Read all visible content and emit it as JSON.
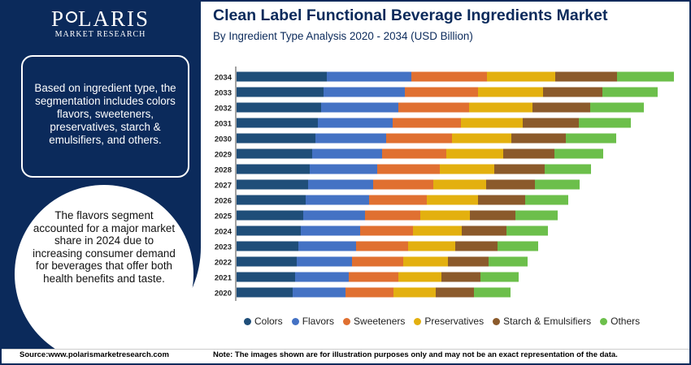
{
  "brand": {
    "name_left": "P",
    "name_right": "LARIS",
    "tagline": "MARKET RESEARCH"
  },
  "header": {
    "title": "Clean Label Functional Beverage Ingredients Market",
    "subtitle": "By Ingredient Type Analysis 2020 - 2034 (USD Billion)"
  },
  "panel": {
    "segmentation_text": "Based on ingredient type, the segmentation includes colors flavors, sweeteners, preservatives, starch & emulsifiers, and others.",
    "highlight_text": "The flavors segment accounted for a major market share in 2024 due to increasing consumer demand for beverages that offer both health benefits and taste."
  },
  "footer": {
    "source": "Source:www.polarismarketresearch.com",
    "note": "Note: The images shown are for illustration purposes only and may not be an exact representation of the data."
  },
  "colors": {
    "navy": "#0b2a5b",
    "Colors": "#1f4e79",
    "Flavors": "#4472c4",
    "Sweeteners": "#e07031",
    "Preservatives": "#e3b00f",
    "Starch & Emulsifiers": "#8b5a2b",
    "Others": "#6cbf4b"
  },
  "chart_data": {
    "type": "bar",
    "orientation": "horizontal",
    "stacked": true,
    "title": "Clean Label Functional Beverage Ingredients Market",
    "subtitle": "By Ingredient Type Analysis 2020 - 2034 (USD Billion)",
    "legend_position": "bottom",
    "grid": false,
    "categories": [
      "2034",
      "2033",
      "2032",
      "2031",
      "2030",
      "2029",
      "2028",
      "2027",
      "2026",
      "2025",
      "2024",
      "2023",
      "2022",
      "2021",
      "2020"
    ],
    "series": [
      {
        "name": "Colors",
        "values": [
          111,
          107,
          104,
          100,
          97,
          93,
          90,
          88,
          85,
          82,
          79,
          76,
          74,
          72,
          69
        ]
      },
      {
        "name": "Flavors",
        "values": [
          104,
          100,
          95,
          92,
          87,
          86,
          83,
          80,
          78,
          76,
          73,
          71,
          68,
          66,
          65
        ]
      },
      {
        "name": "Sweeteners",
        "values": [
          93,
          90,
          87,
          84,
          81,
          79,
          77,
          74,
          71,
          68,
          65,
          64,
          63,
          61,
          59
        ]
      },
      {
        "name": "Preservatives",
        "values": [
          84,
          80,
          78,
          76,
          73,
          70,
          67,
          65,
          63,
          61,
          60,
          58,
          55,
          53,
          52
        ]
      },
      {
        "name": "Starch & Emulsifiers",
        "values": [
          76,
          73,
          71,
          69,
          67,
          63,
          62,
          60,
          58,
          56,
          55,
          52,
          50,
          48,
          47
        ]
      },
      {
        "name": "Others",
        "values": [
          70,
          68,
          66,
          64,
          62,
          60,
          57,
          55,
          53,
          52,
          51,
          50,
          48,
          47,
          45
        ]
      }
    ]
  }
}
